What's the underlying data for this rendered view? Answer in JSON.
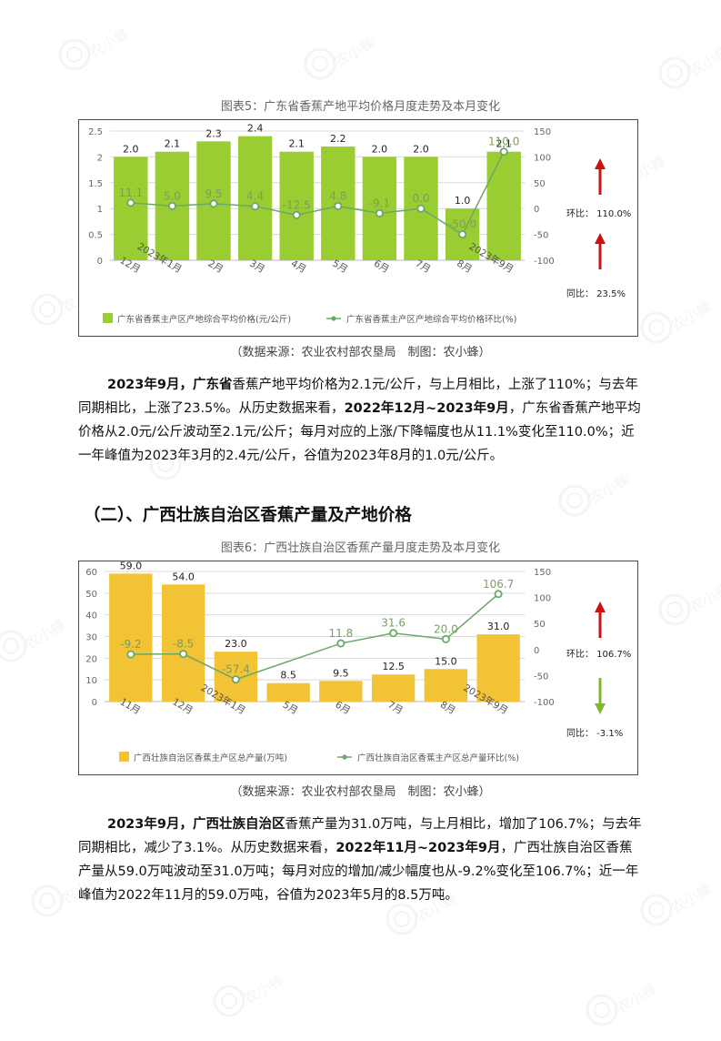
{
  "watermark": {
    "text": "农小蜂",
    "subtext": "BEEDATA"
  },
  "section1": {
    "figure_title": "图表5：广东省香蕉产地平均价格月度走势及本月变化",
    "source": "（数据来源：农业农村部农垦局　制图：农小蜂）",
    "paragraph": {
      "b1": "2023年9月，",
      "b2": "广东省",
      "t1": "香蕉产地平均价格为2.1元/公斤，与上月相比，上涨了110%；与去年同期相比，上涨了23.5%。从历史数据来看，",
      "b3": "2022年12月~2023年9月",
      "t2": "，广东省香蕉产地平均价格从2.0元/公斤波动至2.1元/公斤；每月对应的上涨/下降幅度也从11.1%变化至110.0%；近一年峰值为2023年3月的2.4元/公斤，谷值为2023年8月的1.0元/公斤。"
    }
  },
  "section2": {
    "heading": "（二）、广西壮族自治区香蕉产量及产地价格",
    "figure_title": "图表6：广西壮族自治区香蕉产量月度走势及本月变化",
    "source": "（数据来源：农业农村部农垦局　制图：农小蜂）",
    "paragraph": {
      "b1": "2023年9月，",
      "b2": "广西壮族自治区",
      "t1": "香蕉产量为31.0万吨，与上月相比，增加了106.7%；与去年同期相比，减少了3.1%。从历史数据来看，",
      "b3": "2022年11月~2023年9月",
      "t2": "，广西壮族自治区香蕉产量从59.0万吨波动至31.0万吨；每月对应的增加/减少幅度也从-9.2%变化至106.7%；近一年峰值为2022年11月的59.0万吨，谷值为2023年5月的8.5万吨。"
    }
  },
  "chart_data": [
    {
      "type": "bar",
      "categories": [
        "12月",
        "2023年1月",
        "2月",
        "3月",
        "4月",
        "5月",
        "6月",
        "7月",
        "8月",
        "2023年9月"
      ],
      "series": [
        {
          "name": "广东省香蕉主产区产地综合平均价格(元/公斤)",
          "type": "bar",
          "axis": "left",
          "values": [
            2.0,
            2.1,
            2.3,
            2.4,
            2.1,
            2.2,
            2.0,
            2.0,
            1.0,
            2.1
          ],
          "color": "#9ACD32"
        },
        {
          "name": "广东省香蕉主产区产地综合平均价格环比(%)",
          "type": "line",
          "axis": "right",
          "values": [
            11.1,
            5.0,
            9.5,
            4.4,
            -12.5,
            4.8,
            -9.1,
            0.0,
            -50.0,
            110.0
          ],
          "color": "#6aa86a"
        }
      ],
      "bar_labels": [
        "2.0",
        "2.1",
        "2.3",
        "2.4",
        "2.1",
        "2.2",
        "2.0",
        "2.0",
        "1.0",
        "2.1"
      ],
      "line_labels": [
        "11.1",
        "5.0",
        "9.5",
        "4.4",
        "-12.5",
        "4.8",
        "-9.1",
        "0.0",
        "-50.0",
        "110.0"
      ],
      "ylim_left": [
        0,
        2.5
      ],
      "yticks_left": [
        "0",
        "0.5",
        "1",
        "1.5",
        "2",
        "2.5"
      ],
      "ylim_right": [
        -100,
        150
      ],
      "yticks_right": [
        "-100",
        "-50",
        "0",
        "50",
        "100",
        "150"
      ],
      "legend_position": "bottom",
      "side": {
        "mom_label": "环比：",
        "mom_value": "110.0%",
        "mom_dir": "up",
        "yoy_label": "同比：",
        "yoy_value": "23.5%",
        "yoy_dir": "up"
      },
      "colors": {
        "up": "#cc1111",
        "down": "#7fb82e"
      }
    },
    {
      "type": "bar",
      "categories": [
        "11月",
        "12月",
        "2023年1月",
        "5月",
        "6月",
        "7月",
        "8月",
        "2023年9月"
      ],
      "series": [
        {
          "name": "广西壮族自治区香蕉主产区总产量(万吨)",
          "type": "bar",
          "axis": "left",
          "values": [
            59.0,
            54.0,
            23.0,
            8.5,
            9.5,
            12.5,
            15.0,
            31.0
          ],
          "color": "#F2C335"
        },
        {
          "name": "广西壮族自治区香蕉主产区总产量环比(%)",
          "type": "line",
          "axis": "right",
          "values": [
            -9.2,
            -8.5,
            -57.4,
            null,
            11.8,
            31.6,
            20.0,
            106.7
          ],
          "color": "#6aa86a"
        }
      ],
      "bar_labels": [
        "59.0",
        "54.0",
        "23.0",
        "8.5",
        "9.5",
        "12.5",
        "15.0",
        "31.0"
      ],
      "line_labels": [
        "-9.2",
        "-8.5",
        "-57.4",
        "",
        "11.8",
        "31.6",
        "20.0",
        "106.7"
      ],
      "ylim_left": [
        0,
        60
      ],
      "yticks_left": [
        "0",
        "10",
        "20",
        "30",
        "40",
        "50",
        "60"
      ],
      "ylim_right": [
        -100,
        150
      ],
      "yticks_right": [
        "-100",
        "-50",
        "0",
        "50",
        "100",
        "150"
      ],
      "legend_position": "bottom",
      "side": {
        "mom_label": "环比：",
        "mom_value": "106.7%",
        "mom_dir": "up",
        "yoy_label": "同比：",
        "yoy_value": "-3.1%",
        "yoy_dir": "down"
      },
      "colors": {
        "up": "#cc1111",
        "down": "#7fb82e"
      }
    }
  ]
}
